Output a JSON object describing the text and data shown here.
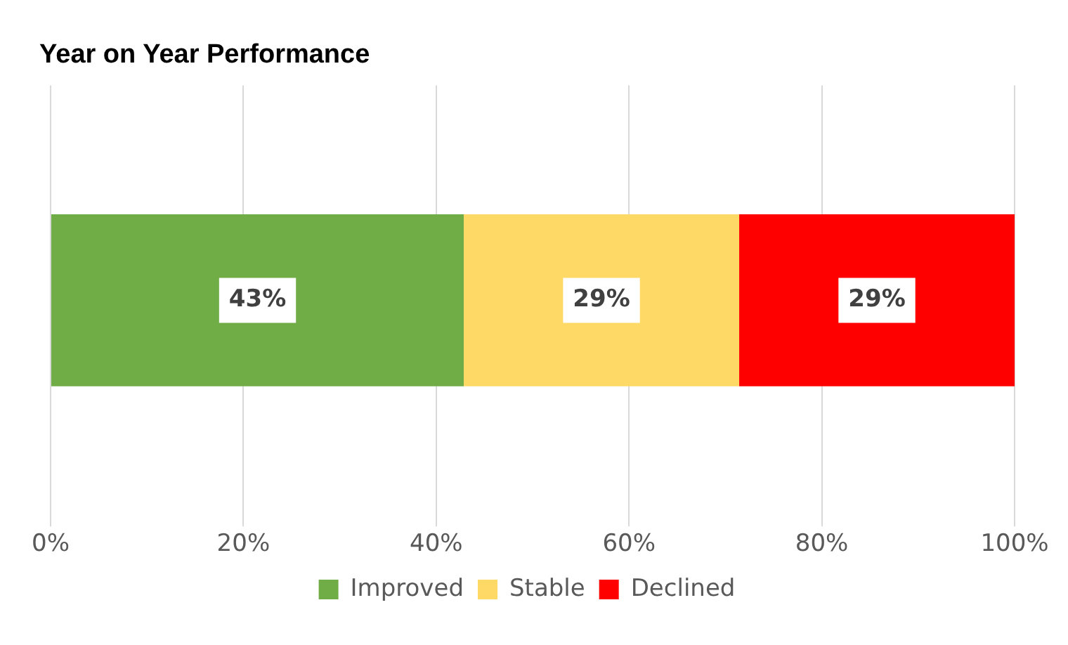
{
  "chart_data": {
    "type": "bar",
    "title": "Year on Year Performance",
    "orientation": "horizontal",
    "stacked": true,
    "categories": [
      null
    ],
    "series": [
      {
        "name": "Improved",
        "color": "#70ad47",
        "values": [
          42.86
        ],
        "value_labels": [
          "43%"
        ]
      },
      {
        "name": "Stable",
        "color": "#ffd966",
        "values": [
          28.57
        ],
        "value_labels": [
          "29%"
        ]
      },
      {
        "name": "Declined",
        "color": "#ff0000",
        "values": [
          28.57
        ],
        "value_labels": [
          "29%"
        ]
      }
    ],
    "xlim": [
      0,
      100
    ],
    "xticks": [
      {
        "value": 0,
        "label": "0%"
      },
      {
        "value": 20,
        "label": "20%"
      },
      {
        "value": 40,
        "label": "40%"
      },
      {
        "value": 60,
        "label": "60%"
      },
      {
        "value": 80,
        "label": "80%"
      },
      {
        "value": 100,
        "label": "100%"
      }
    ],
    "grid": "x",
    "legend": "bottom",
    "tick_labels": "x"
  }
}
